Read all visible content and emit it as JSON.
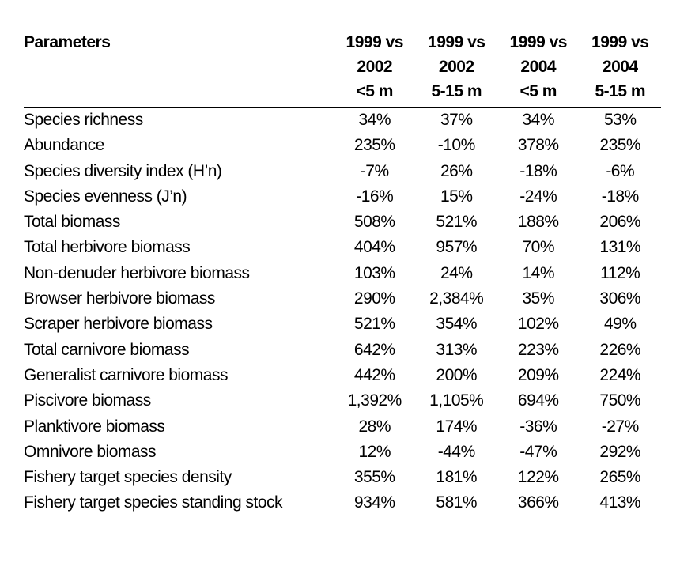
{
  "table": {
    "header": {
      "parameter": "Parameters",
      "columns": [
        {
          "line1": "1999 vs",
          "line2": "2002",
          "line3": "<5 m"
        },
        {
          "line1": "1999 vs",
          "line2": "2002",
          "line3": "5-15 m"
        },
        {
          "line1": "1999 vs",
          "line2": "2004",
          "line3": "<5 m"
        },
        {
          "line1": "1999 vs",
          "line2": "2004",
          "line3": "5-15 m"
        }
      ]
    },
    "rows": [
      {
        "parameter": "Species richness",
        "values": [
          "34%",
          "37%",
          "34%",
          "53%"
        ]
      },
      {
        "parameter": "Abundance",
        "values": [
          "235%",
          "-10%",
          "378%",
          "235%"
        ]
      },
      {
        "parameter": "Species diversity index (H’n)",
        "values": [
          "-7%",
          "26%",
          "-18%",
          "-6%"
        ]
      },
      {
        "parameter": "Species evenness (J’n)",
        "values": [
          "-16%",
          "15%",
          "-24%",
          "-18%"
        ]
      },
      {
        "parameter": "Total biomass",
        "values": [
          "508%",
          "521%",
          "188%",
          "206%"
        ]
      },
      {
        "parameter": "Total herbivore biomass",
        "values": [
          "404%",
          "957%",
          "70%",
          "131%"
        ]
      },
      {
        "parameter": "Non-denuder herbivore biomass",
        "values": [
          "103%",
          "24%",
          "14%",
          "112%"
        ]
      },
      {
        "parameter": "Browser herbivore biomass",
        "values": [
          "290%",
          "2,384%",
          "35%",
          "306%"
        ]
      },
      {
        "parameter": "Scraper herbivore biomass",
        "values": [
          "521%",
          "354%",
          "102%",
          "49%"
        ]
      },
      {
        "parameter": "Total carnivore biomass",
        "values": [
          "642%",
          "313%",
          "223%",
          "226%"
        ]
      },
      {
        "parameter": "Generalist carnivore biomass",
        "values": [
          "442%",
          "200%",
          "209%",
          "224%"
        ]
      },
      {
        "parameter": "Piscivore biomass",
        "values": [
          "1,392%",
          "1,105%",
          "694%",
          "750%"
        ]
      },
      {
        "parameter": "Planktivore biomass",
        "values": [
          "28%",
          "174%",
          "-36%",
          "-27%"
        ]
      },
      {
        "parameter": "Omnivore biomass",
        "values": [
          "12%",
          "-44%",
          "-47%",
          "292%"
        ]
      },
      {
        "parameter": "Fishery target species density",
        "values": [
          "355%",
          "181%",
          "122%",
          "265%"
        ]
      },
      {
        "parameter": "Fishery target species standing stock",
        "values": [
          "934%",
          "581%",
          "366%",
          "413%"
        ]
      }
    ]
  }
}
